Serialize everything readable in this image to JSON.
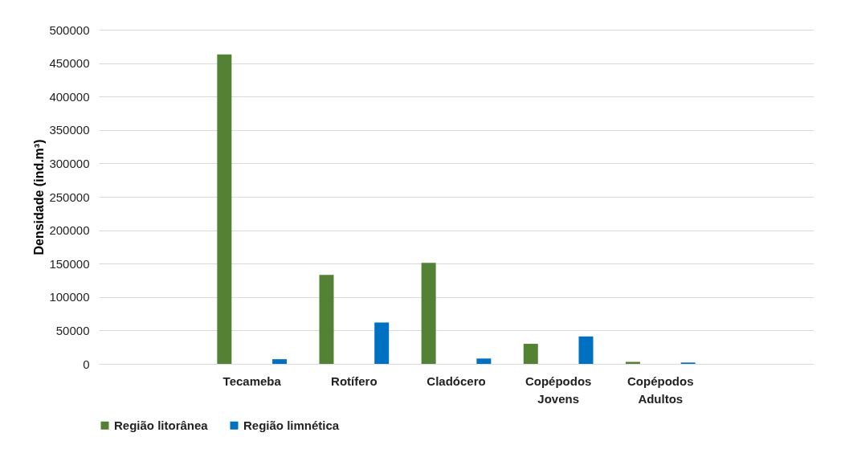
{
  "chart_data": {
    "type": "bar",
    "ylabel": "Densidade (ind.m³)",
    "categories": [
      null,
      "Tecameba",
      "Rotífero",
      "Cladócero",
      "Copépodos Jovens",
      "Copépodos Adultos",
      null
    ],
    "series": [
      {
        "name": "Região litorânea",
        "color": "#548235",
        "values": [
          null,
          463000,
          133000,
          151000,
          30000,
          3000,
          null
        ]
      },
      {
        "name": "Região limnética",
        "color": "#0070c0",
        "values": [
          null,
          7000,
          62000,
          8000,
          41000,
          2000,
          null
        ]
      }
    ],
    "ylim": [
      0,
      500000
    ],
    "yticks": [
      0,
      50000,
      100000,
      150000,
      200000,
      250000,
      300000,
      350000,
      400000,
      450000,
      500000
    ],
    "grid": "y",
    "legend": "bottom"
  }
}
